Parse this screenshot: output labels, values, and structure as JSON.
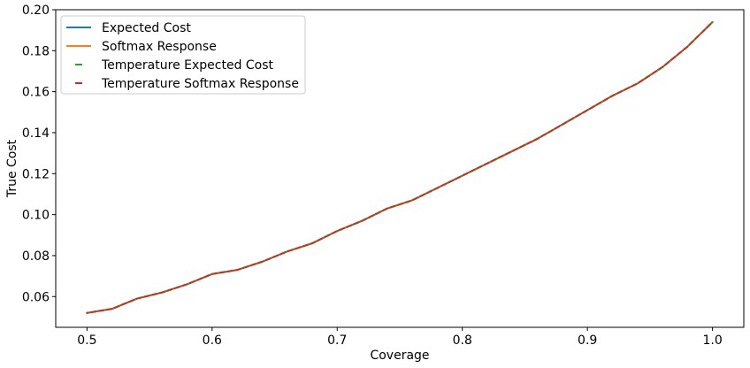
{
  "chart_data": {
    "type": "line",
    "title": "",
    "xlabel": "Coverage",
    "ylabel": "True Cost",
    "xlim": [
      0.475,
      1.025
    ],
    "ylim": [
      0.045,
      0.2
    ],
    "xticks": [
      0.5,
      0.6,
      0.7,
      0.8,
      0.9,
      1.0
    ],
    "xtick_labels": [
      "0.5",
      "0.6",
      "0.7",
      "0.8",
      "0.9",
      "1.0"
    ],
    "yticks": [
      0.06,
      0.08,
      0.1,
      0.12,
      0.14,
      0.16,
      0.18,
      0.2
    ],
    "ytick_labels": [
      "0.06",
      "0.08",
      "0.10",
      "0.12",
      "0.14",
      "0.16",
      "0.18",
      "0.20"
    ],
    "grid": false,
    "legend_position": "top-left",
    "x": [
      0.5,
      0.52,
      0.54,
      0.56,
      0.58,
      0.6,
      0.62,
      0.64,
      0.66,
      0.68,
      0.7,
      0.72,
      0.74,
      0.76,
      0.78,
      0.8,
      0.82,
      0.84,
      0.86,
      0.88,
      0.9,
      0.92,
      0.94,
      0.96,
      0.98,
      1.0
    ],
    "series": [
      {
        "name": "Expected Cost",
        "color": "#1f77b4",
        "style": "solid",
        "values": [
          0.052,
          0.054,
          0.059,
          0.062,
          0.066,
          0.071,
          0.073,
          0.077,
          0.082,
          0.086,
          0.092,
          0.097,
          0.103,
          0.107,
          0.113,
          0.119,
          0.125,
          0.131,
          0.137,
          0.144,
          0.151,
          0.158,
          0.164,
          0.172,
          0.182,
          0.194
        ]
      },
      {
        "name": "Softmax Response",
        "color": "#ff7f0e",
        "style": "solid",
        "values": [
          0.052,
          0.054,
          0.059,
          0.062,
          0.066,
          0.071,
          0.073,
          0.077,
          0.082,
          0.086,
          0.092,
          0.097,
          0.103,
          0.107,
          0.113,
          0.119,
          0.125,
          0.131,
          0.137,
          0.144,
          0.151,
          0.158,
          0.164,
          0.172,
          0.182,
          0.194
        ]
      },
      {
        "name": "Temperature Expected Cost",
        "color": "#2ca02c",
        "style": "dashed",
        "values": [
          0.052,
          0.054,
          0.059,
          0.062,
          0.066,
          0.071,
          0.073,
          0.077,
          0.082,
          0.086,
          0.092,
          0.097,
          0.103,
          0.107,
          0.113,
          0.119,
          0.125,
          0.131,
          0.137,
          0.144,
          0.151,
          0.158,
          0.164,
          0.172,
          0.182,
          0.194
        ]
      },
      {
        "name": "Temperature Softmax Response",
        "color": "#d62728",
        "style": "dashed",
        "values": [
          0.052,
          0.054,
          0.059,
          0.062,
          0.066,
          0.071,
          0.073,
          0.077,
          0.082,
          0.086,
          0.092,
          0.097,
          0.103,
          0.107,
          0.113,
          0.119,
          0.125,
          0.131,
          0.137,
          0.144,
          0.151,
          0.158,
          0.164,
          0.172,
          0.182,
          0.194
        ]
      }
    ]
  }
}
